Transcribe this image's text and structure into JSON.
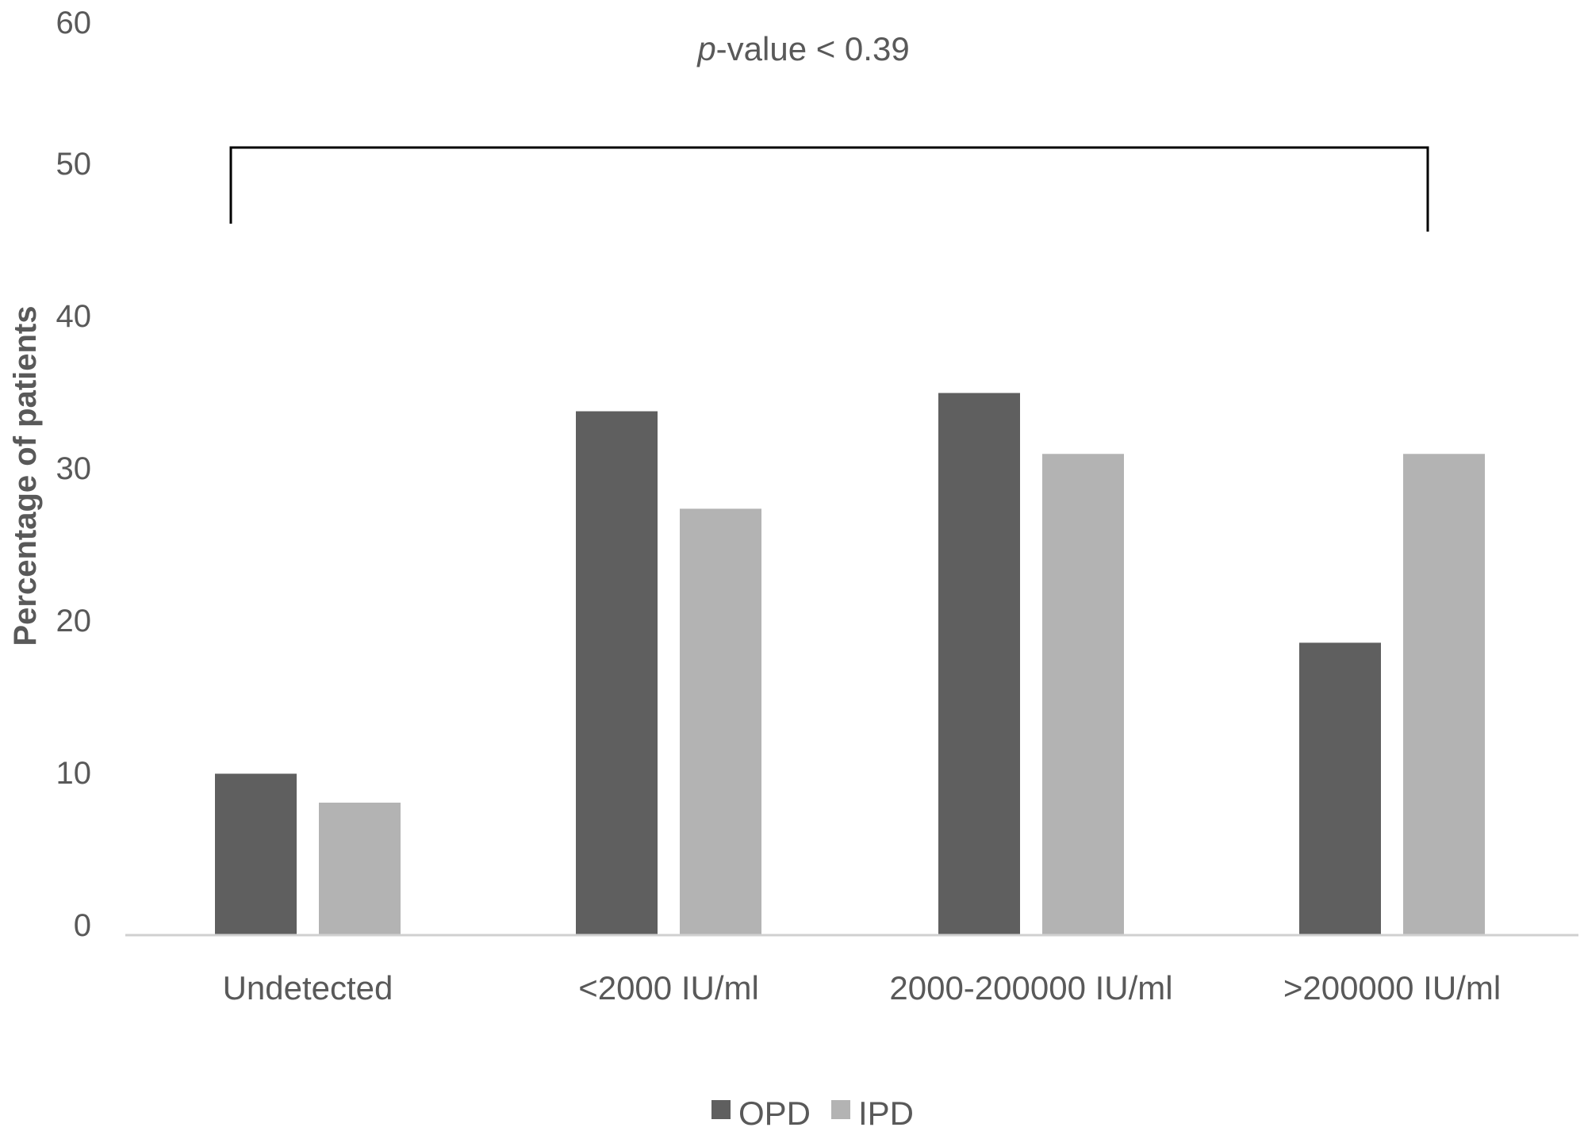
{
  "chart_data": {
    "type": "bar",
    "categories": [
      "Undetected",
      "<2000 IU/ml",
      "2000-200000 IU/ml",
      ">200000 IU/ml"
    ],
    "series": [
      {
        "name": "OPD",
        "values": [
          10.6,
          34.4,
          35.6,
          19.2
        ],
        "color": "#5f5f5f"
      },
      {
        "name": "IPD",
        "values": [
          8.7,
          28.0,
          31.6,
          31.6
        ],
        "color": "#b3b3b3"
      }
    ],
    "title": "",
    "xlabel": "",
    "ylabel": "Percentage of patients",
    "ylim": [
      0,
      60
    ],
    "yticks": [
      "0",
      "10",
      "20",
      "30",
      "40",
      "50",
      "60"
    ],
    "grid": false,
    "legend_position": "bottom",
    "annotation": {
      "prefix": "p",
      "text": "-value < 0.39",
      "spans": [
        "Undetected",
        ">200000 IU/ml"
      ]
    }
  }
}
